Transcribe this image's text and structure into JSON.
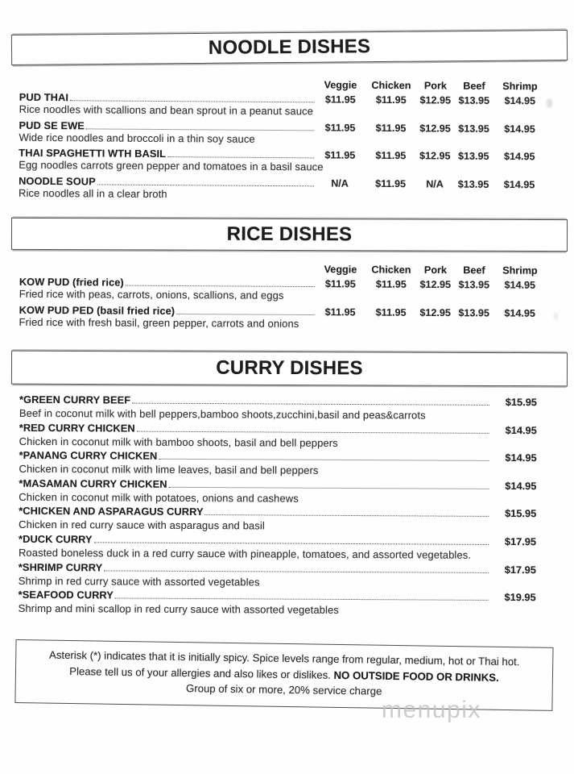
{
  "watermark": "menupix",
  "price_columns": [
    "Veggie",
    "Chicken",
    "Pork",
    "Beef",
    "Shrimp"
  ],
  "sections": [
    {
      "id": "noodle-dishes",
      "title": "NOODLE DISHES",
      "layout": "multi",
      "dishes": [
        {
          "name": "PUD THAI",
          "desc": "Rice noodles with scallions and bean sprout in a peanut sauce",
          "prices": [
            "$11.95",
            "$11.95",
            "$12.95",
            "$13.95",
            "$14.95"
          ]
        },
        {
          "name": "PUD SE EWE",
          "desc": "Wide rice noodles and broccoli in a thin soy sauce",
          "prices": [
            "$11.95",
            "$11.95",
            "$12.95",
            "$13.95",
            "$14.95"
          ]
        },
        {
          "name": "THAI SPAGHETTI WTH BASIL",
          "desc": "Egg noodles carrots green pepper and tomatoes in a basil sauce",
          "prices": [
            "$11.95",
            "$11.95",
            "$12.95",
            "$13.95",
            "$14.95"
          ]
        },
        {
          "name": "NOODLE SOUP",
          "desc": "Rice noodles all in a clear broth",
          "prices": [
            "N/A",
            "$11.95",
            "N/A",
            "$13.95",
            "$14.95"
          ]
        }
      ]
    },
    {
      "id": "rice-dishes",
      "title": "RICE DISHES",
      "layout": "multi",
      "dishes": [
        {
          "name": "KOW PUD (fried rice)",
          "desc": "Fried rice with peas, carrots, onions, scallions, and eggs",
          "prices": [
            "$11.95",
            "$11.95",
            "$12.95",
            "$13.95",
            "$14.95"
          ]
        },
        {
          "name": "KOW PUD PED (basil fried rice)",
          "desc": "Fried rice with fresh basil, green  pepper, carrots and onions",
          "prices": [
            "$11.95",
            "$11.95",
            "$12.95",
            "$13.95",
            "$14.95"
          ]
        }
      ]
    },
    {
      "id": "curry-dishes",
      "title": "CURRY DISHES",
      "layout": "single",
      "dishes": [
        {
          "name": "*GREEN CURRY BEEF",
          "desc": "Beef in coconut milk with bell peppers,bamboo shoots,zucchini,basil and peas&carrots",
          "price": "$15.95"
        },
        {
          "name": "*RED CURRY CHICKEN",
          "desc": "Chicken in coconut milk with bamboo shoots, basil and bell peppers",
          "price": "$14.95"
        },
        {
          "name": "*PANANG CURRY CHICKEN",
          "desc": "Chicken in coconut milk with lime leaves, basil and bell peppers",
          "price": "$14.95"
        },
        {
          "name": "*MASAMAN CURRY CHICKEN",
          "desc": "Chicken in coconut milk with potatoes, onions and cashews",
          "price": "$14.95"
        },
        {
          "name": "*CHICKEN AND ASPARAGUS CURRY",
          "desc": "Chicken in red curry sauce with asparagus and basil",
          "price": "$15.95"
        },
        {
          "name": "*DUCK CURRY",
          "desc": "Roasted boneless duck in a red curry sauce with pineapple, tomatoes, and assorted vegetables.",
          "price": "$17.95"
        },
        {
          "name": "*SHRIMP CURRY",
          "desc": "Shrimp in red curry sauce with assorted vegetables",
          "price": "$17.95"
        },
        {
          "name": "*SEAFOOD CURRY",
          "desc": "Shrimp and mini scallop in red curry sauce with assorted vegetables",
          "price": "$19.95"
        }
      ]
    }
  ],
  "footer": {
    "line1": "Asterisk (*) indicates that it is initially spicy. Spice levels range from regular, medium, hot or Thai hot.",
    "line2_regular": "Please tell us of your allergies and also likes or dislikes. ",
    "line2_bold": "NO OUTSIDE FOOD OR DRINKS.",
    "line3": "Group of six or more, 20% service charge"
  }
}
